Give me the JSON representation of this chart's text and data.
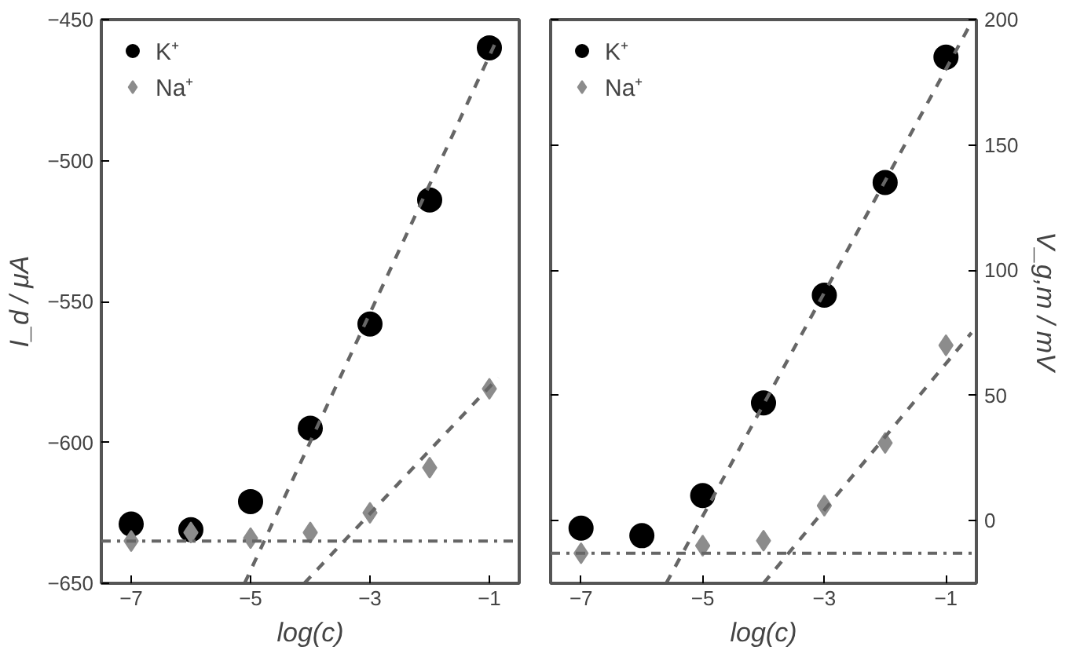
{
  "chart_data": [
    {
      "type": "scatter",
      "xlabel": "log(c)",
      "ylabel": "I_d / μA",
      "xlim": [
        -7.5,
        -0.5
      ],
      "xticks": [
        -7,
        -5,
        -3,
        -1
      ],
      "ylim": [
        -650,
        -450
      ],
      "yticks": [
        -650,
        -600,
        -550,
        -500,
        -450
      ],
      "grid": false,
      "legend": "top left",
      "x": [
        -7,
        -6,
        -5,
        -4,
        -3,
        -2,
        -1
      ],
      "series": [
        {
          "name": "K⁺",
          "color": "#000000",
          "marker": "circle",
          "values": [
            -629,
            -631,
            -621,
            -595,
            -558,
            -514,
            -460
          ]
        },
        {
          "name": "Na⁺",
          "color": "#8c8c8c",
          "marker": "diamond",
          "values": [
            -635,
            -632,
            -634,
            -632,
            -625,
            -609,
            -581
          ]
        },
        {
          "type": "line",
          "line_style": "dashed",
          "color": "#666666",
          "x": [
            -5.1,
            -0.85
          ],
          "values": [
            -650,
            -456
          ]
        },
        {
          "type": "line",
          "line_style": "dashed",
          "color": "#666666",
          "x": [
            -4.1,
            -0.85
          ],
          "values": [
            -650,
            -577
          ]
        }
      ],
      "ref_lines": [
        {
          "axis": "y",
          "value": -635,
          "color": "#666666",
          "line_style": "dashdot"
        }
      ]
    },
    {
      "type": "scatter",
      "xlabel": "log(c)",
      "y2label": "V_g,m / mV",
      "xlim": [
        -7.5,
        -0.5
      ],
      "xticks": [
        -7,
        -5,
        -3,
        -1
      ],
      "y2lim": [
        -25,
        200
      ],
      "y2ticks": [
        0,
        50,
        100,
        150,
        200
      ],
      "grid": false,
      "legend": "top left",
      "x": [
        -7,
        -6,
        -5,
        -4,
        -3,
        -2,
        -1
      ],
      "series": [
        {
          "name": "K⁺",
          "color": "#000000",
          "marker": "circle",
          "axis": "y2",
          "values": [
            -3,
            -6,
            10,
            47,
            90,
            135,
            185
          ]
        },
        {
          "name": "Na⁺",
          "color": "#8c8c8c",
          "marker": "diamond",
          "axis": "y2",
          "values": [
            -13,
            null,
            -10,
            -8,
            6,
            31,
            70
          ]
        },
        {
          "type": "line",
          "line_style": "dashed",
          "color": "#666666",
          "axis": "y2",
          "x": [
            -5.6,
            -0.58
          ],
          "values": [
            -25,
            199
          ]
        },
        {
          "type": "line",
          "line_style": "dashed",
          "color": "#666666",
          "axis": "y2",
          "x": [
            -4.0,
            -0.58
          ],
          "values": [
            -25,
            75
          ]
        }
      ],
      "ref_lines": [
        {
          "axis": "y2",
          "value": -13,
          "color": "#666666",
          "line_style": "dashdot"
        }
      ]
    }
  ]
}
